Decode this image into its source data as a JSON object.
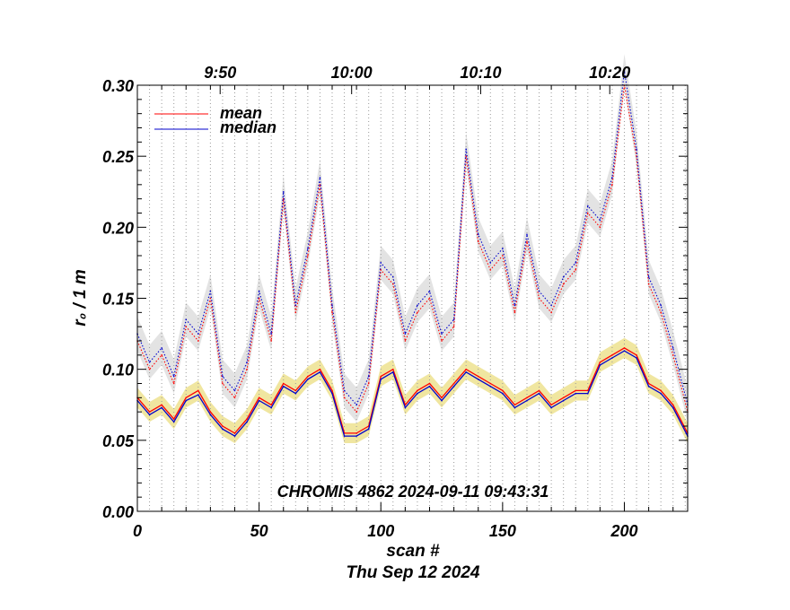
{
  "chart_data": {
    "type": "line",
    "annotation": "CHROMIS 4862 2024-09-11 09:43:31",
    "xlabel": "scan #",
    "xlabel2": "Thu Sep 12 2024",
    "ylabel": "r₀ / 1 m",
    "xlim": [
      0,
      226
    ],
    "ylim": [
      0.0,
      0.3
    ],
    "x_ticks": [
      {
        "v": 0,
        "label": "0"
      },
      {
        "v": 50,
        "label": "50"
      },
      {
        "v": 100,
        "label": "100"
      },
      {
        "v": 150,
        "label": "150"
      },
      {
        "v": 200,
        "label": "200"
      }
    ],
    "y_ticks": [
      {
        "v": 0.0,
        "label": "0.00"
      },
      {
        "v": 0.05,
        "label": "0.05"
      },
      {
        "v": 0.1,
        "label": "0.10"
      },
      {
        "v": 0.15,
        "label": "0.15"
      },
      {
        "v": 0.2,
        "label": "0.20"
      },
      {
        "v": 0.25,
        "label": "0.25"
      },
      {
        "v": 0.3,
        "label": "0.30"
      }
    ],
    "top_ticks": [
      {
        "v": 34,
        "label": "9:50"
      },
      {
        "v": 88,
        "label": "10:00"
      },
      {
        "v": 141,
        "label": "10:10"
      },
      {
        "v": 194,
        "label": "10:20"
      }
    ],
    "legend": {
      "placement": "top-left",
      "entries": [
        {
          "label": "mean",
          "color": "#ff0000"
        },
        {
          "label": "median",
          "color": "#0000cc"
        }
      ]
    },
    "grid": "vertical dotted",
    "colors": {
      "mean": "#ff0000",
      "median": "#0000cc",
      "band_low": "#f0e6a0",
      "band_high": "#e3e3e3"
    },
    "x": [
      0,
      5,
      10,
      15,
      20,
      25,
      30,
      35,
      40,
      45,
      50,
      55,
      60,
      65,
      70,
      75,
      80,
      85,
      90,
      95,
      100,
      105,
      110,
      115,
      120,
      125,
      130,
      135,
      140,
      145,
      150,
      155,
      160,
      165,
      170,
      175,
      180,
      185,
      190,
      195,
      200,
      205,
      210,
      215,
      220,
      226
    ],
    "series": [
      {
        "name": "mean",
        "line": "solid",
        "values": [
          0.08,
          0.07,
          0.075,
          0.065,
          0.08,
          0.085,
          0.07,
          0.06,
          0.055,
          0.065,
          0.08,
          0.075,
          0.09,
          0.085,
          0.095,
          0.1,
          0.085,
          0.055,
          0.055,
          0.06,
          0.095,
          0.1,
          0.075,
          0.085,
          0.09,
          0.08,
          0.09,
          0.1,
          0.095,
          0.09,
          0.085,
          0.075,
          0.08,
          0.085,
          0.075,
          0.08,
          0.085,
          0.085,
          0.105,
          0.11,
          0.115,
          0.11,
          0.09,
          0.085,
          0.075,
          0.055
        ]
      },
      {
        "name": "median",
        "line": "solid",
        "values": [
          0.078,
          0.068,
          0.073,
          0.063,
          0.078,
          0.082,
          0.068,
          0.058,
          0.053,
          0.063,
          0.078,
          0.073,
          0.088,
          0.083,
          0.093,
          0.098,
          0.083,
          0.053,
          0.053,
          0.058,
          0.093,
          0.098,
          0.073,
          0.083,
          0.088,
          0.078,
          0.088,
          0.098,
          0.093,
          0.088,
          0.083,
          0.073,
          0.078,
          0.083,
          0.073,
          0.078,
          0.083,
          0.083,
          0.103,
          0.108,
          0.113,
          0.108,
          0.088,
          0.083,
          0.073,
          0.053
        ]
      },
      {
        "name": "mean",
        "line": "dotted",
        "values": [
          0.12,
          0.1,
          0.11,
          0.09,
          0.13,
          0.12,
          0.15,
          0.09,
          0.08,
          0.1,
          0.15,
          0.12,
          0.22,
          0.14,
          0.18,
          0.23,
          0.14,
          0.08,
          0.07,
          0.09,
          0.17,
          0.16,
          0.12,
          0.14,
          0.15,
          0.12,
          0.13,
          0.25,
          0.19,
          0.17,
          0.18,
          0.14,
          0.19,
          0.15,
          0.14,
          0.16,
          0.17,
          0.21,
          0.2,
          0.23,
          0.3,
          0.25,
          0.16,
          0.14,
          0.11,
          0.07
        ]
      },
      {
        "name": "median",
        "line": "dotted",
        "values": [
          0.125,
          0.105,
          0.115,
          0.095,
          0.135,
          0.125,
          0.155,
          0.095,
          0.085,
          0.105,
          0.155,
          0.125,
          0.225,
          0.145,
          0.185,
          0.235,
          0.145,
          0.085,
          0.075,
          0.095,
          0.175,
          0.165,
          0.125,
          0.145,
          0.155,
          0.125,
          0.135,
          0.255,
          0.195,
          0.175,
          0.185,
          0.145,
          0.195,
          0.155,
          0.145,
          0.165,
          0.175,
          0.215,
          0.205,
          0.235,
          0.31,
          0.255,
          0.165,
          0.145,
          0.115,
          0.075
        ]
      }
    ]
  }
}
